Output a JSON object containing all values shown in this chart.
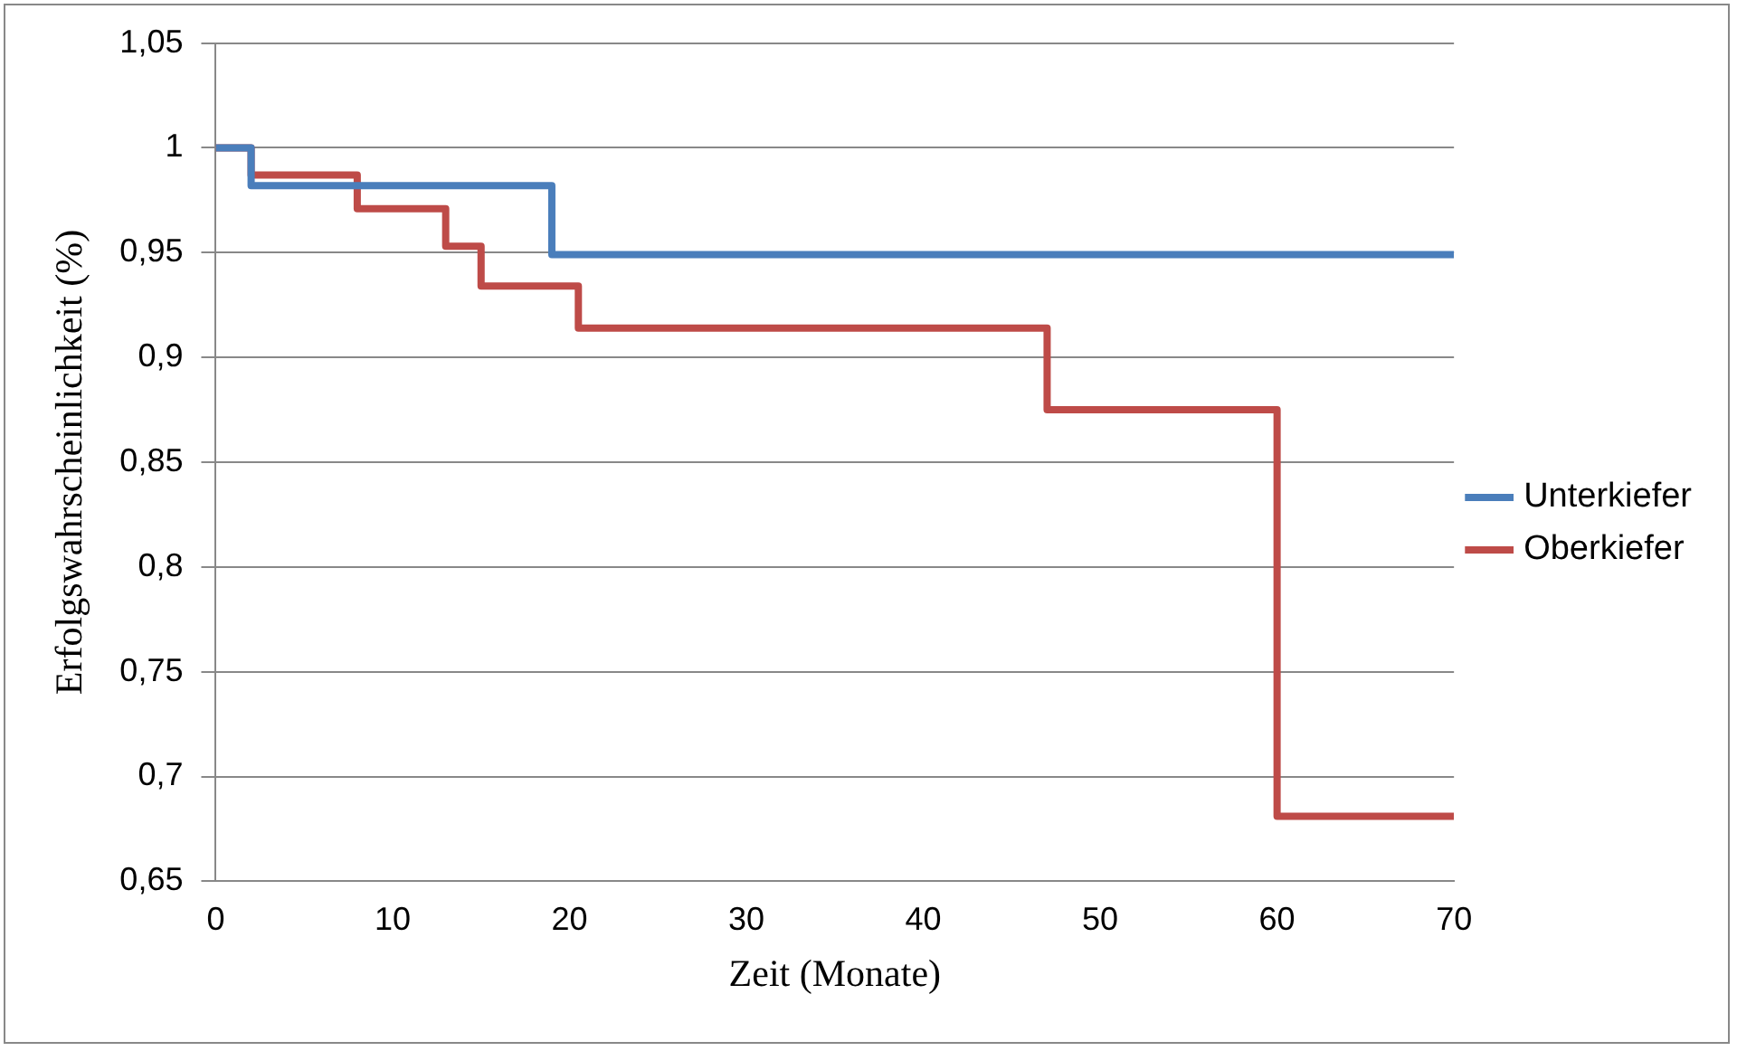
{
  "chart_data": {
    "type": "step",
    "xlabel": "Zeit (Monate)",
    "ylabel": "Erfolgswahrscheinlichkeit (%)",
    "series": [
      {
        "name": "Unterkiefer",
        "color": "#4a7ebb",
        "x": [
          0,
          2,
          19,
          70
        ],
        "values": [
          1,
          0.982,
          0.949,
          0.949
        ]
      },
      {
        "name": "Oberkiefer",
        "color": "#be4b48",
        "x": [
          0,
          2,
          8,
          13,
          15,
          20.5,
          47,
          60,
          70
        ],
        "values": [
          1,
          0.987,
          0.971,
          0.953,
          0.934,
          0.914,
          0.875,
          0.681,
          0.681
        ]
      }
    ],
    "xlim": [
      0,
      70
    ],
    "xticks": [
      0,
      10,
      20,
      30,
      40,
      50,
      60,
      70
    ],
    "ylim": [
      0.65,
      1.05
    ],
    "yticks": [
      {
        "value": 0.65,
        "label": "0,65"
      },
      {
        "value": 0.7,
        "label": "0,7"
      },
      {
        "value": 0.75,
        "label": "0,75"
      },
      {
        "value": 0.8,
        "label": "0,8"
      },
      {
        "value": 0.85,
        "label": "0,85"
      },
      {
        "value": 0.9,
        "label": "0,9"
      },
      {
        "value": 0.95,
        "label": "0,95"
      },
      1,
      {
        "value": 1.05,
        "label": "1,05"
      }
    ],
    "grid": "y",
    "legend": "right",
    "marker": "none",
    "line_style": "solid"
  }
}
